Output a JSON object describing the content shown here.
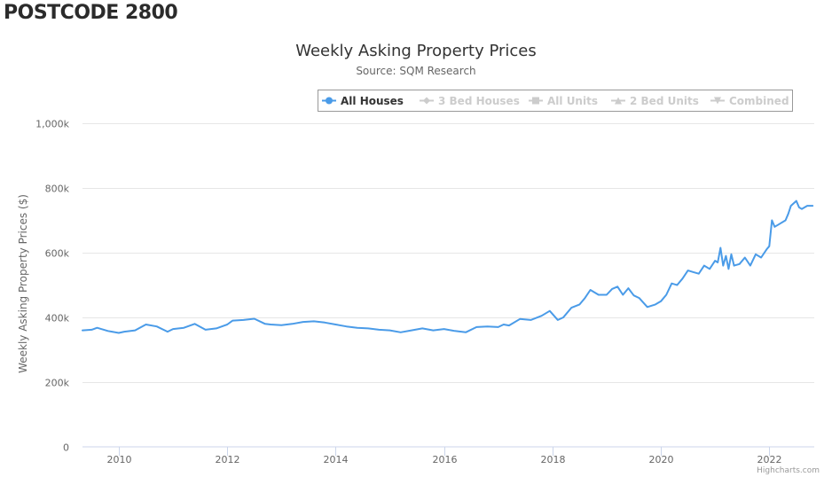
{
  "page": {
    "heading": "POSTCODE 2800"
  },
  "chart_data": {
    "type": "line",
    "title": "Weekly Asking Property Prices",
    "subtitle": "Source: SQM Research",
    "xlabel": "",
    "ylabel": "Weekly Asking Property Prices ($)",
    "ylim": [
      0,
      1000000
    ],
    "y_ticks": [
      0,
      200000,
      400000,
      600000,
      800000,
      1000000
    ],
    "y_tick_labels": [
      "0",
      "200k",
      "400k",
      "600k",
      "800k",
      "1,000k"
    ],
    "x_range": [
      2009.33,
      2022.83
    ],
    "x_ticks": [
      2010,
      2012,
      2014,
      2016,
      2018,
      2020,
      2022
    ],
    "x_tick_labels": [
      "2010",
      "2012",
      "2014",
      "2016",
      "2018",
      "2020",
      "2022"
    ],
    "grid": "horizontal",
    "legend_placement": "top-right",
    "legend": [
      {
        "name": "All Houses",
        "marker": "circle",
        "active": true
      },
      {
        "name": "3 Bed Houses",
        "marker": "diamond",
        "active": false
      },
      {
        "name": "All Units",
        "marker": "square",
        "active": false
      },
      {
        "name": "2 Bed Units",
        "marker": "triangle",
        "active": false
      },
      {
        "name": "Combined",
        "marker": "triangle-down",
        "active": false
      }
    ],
    "series": [
      {
        "name": "All Houses",
        "color": "#4a9be8",
        "x": [
          2009.33,
          2009.5,
          2009.6,
          2009.8,
          2010.0,
          2010.1,
          2010.3,
          2010.5,
          2010.7,
          2010.9,
          2011.0,
          2011.2,
          2011.4,
          2011.6,
          2011.8,
          2012.0,
          2012.1,
          2012.3,
          2012.5,
          2012.7,
          2012.8,
          2013.0,
          2013.2,
          2013.4,
          2013.6,
          2013.8,
          2014.0,
          2014.2,
          2014.4,
          2014.6,
          2014.8,
          2015.0,
          2015.2,
          2015.4,
          2015.6,
          2015.8,
          2016.0,
          2016.2,
          2016.4,
          2016.6,
          2016.8,
          2017.0,
          2017.1,
          2017.2,
          2017.4,
          2017.6,
          2017.8,
          2017.95,
          2018.1,
          2018.2,
          2018.35,
          2018.5,
          2018.6,
          2018.7,
          2018.85,
          2019.0,
          2019.1,
          2019.2,
          2019.3,
          2019.4,
          2019.5,
          2019.6,
          2019.75,
          2019.9,
          2020.0,
          2020.1,
          2020.2,
          2020.3,
          2020.4,
          2020.5,
          2020.6,
          2020.7,
          2020.8,
          2020.9,
          2021.0,
          2021.05,
          2021.1,
          2021.15,
          2021.2,
          2021.25,
          2021.3,
          2021.35,
          2021.45,
          2021.55,
          2021.65,
          2021.75,
          2021.85,
          2021.95,
          2022.0,
          2022.05,
          2022.1,
          2022.2,
          2022.3,
          2022.35,
          2022.4,
          2022.5,
          2022.55,
          2022.6,
          2022.7,
          2022.8
        ],
        "values": [
          360000,
          362000,
          368000,
          358000,
          352000,
          356000,
          360000,
          378000,
          372000,
          356000,
          364000,
          368000,
          380000,
          362000,
          366000,
          378000,
          390000,
          392000,
          396000,
          380000,
          378000,
          376000,
          380000,
          386000,
          388000,
          384000,
          378000,
          372000,
          368000,
          366000,
          362000,
          360000,
          354000,
          360000,
          366000,
          360000,
          364000,
          358000,
          354000,
          370000,
          372000,
          370000,
          378000,
          375000,
          395000,
          392000,
          405000,
          420000,
          392000,
          400000,
          430000,
          440000,
          460000,
          485000,
          470000,
          470000,
          488000,
          495000,
          470000,
          490000,
          468000,
          460000,
          432000,
          440000,
          450000,
          470000,
          505000,
          500000,
          520000,
          545000,
          540000,
          535000,
          560000,
          550000,
          575000,
          570000,
          615000,
          560000,
          590000,
          550000,
          595000,
          560000,
          565000,
          585000,
          560000,
          595000,
          585000,
          610000,
          620000,
          700000,
          680000,
          690000,
          700000,
          720000,
          745000,
          760000,
          740000,
          735000,
          745000,
          745000
        ]
      }
    ]
  },
  "credits": "Highcharts.com"
}
